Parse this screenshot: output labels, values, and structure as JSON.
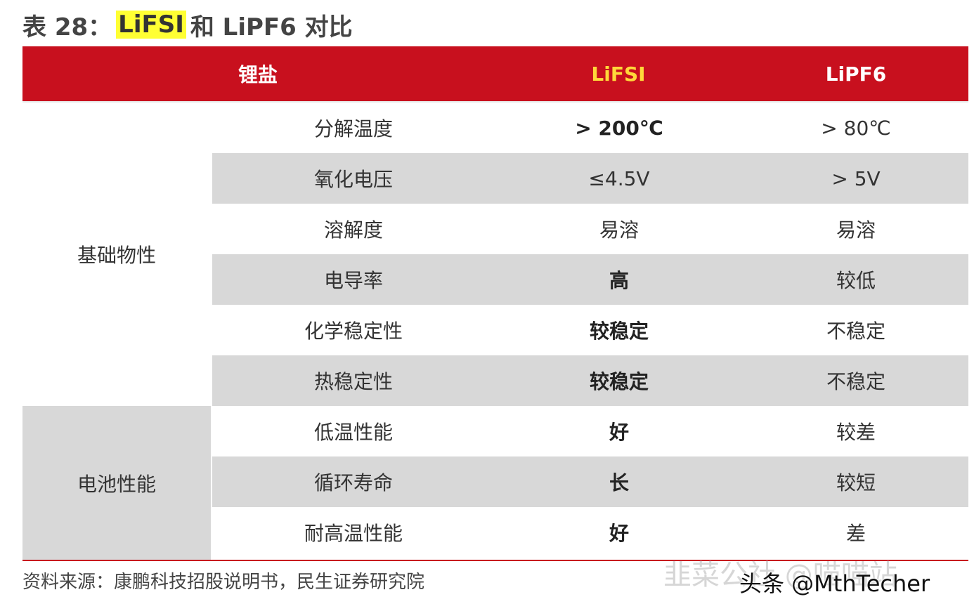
{
  "title": {
    "prefix": "表 28：",
    "highlight": "LiFSI",
    "suffix": "和 LiPF6 对比"
  },
  "header": {
    "col1": "锂盐",
    "col2": "LiFSI",
    "col3": "LiPF6"
  },
  "colors": {
    "header_bg": "#c8101e",
    "header_lifsi_text": "#ffd83a",
    "stripe": "#d8d8d8",
    "highlight": "#ffff33"
  },
  "groups": [
    {
      "label": "基础物性",
      "rows": [
        {
          "prop": "分解温度",
          "lifsi": "> 200℃",
          "lipf6": "> 80℃",
          "bold": true
        },
        {
          "prop": "氧化电压",
          "lifsi": "≤4.5V",
          "lipf6": "> 5V",
          "bold": false
        },
        {
          "prop": "溶解度",
          "lifsi": "易溶",
          "lipf6": "易溶",
          "bold": false
        },
        {
          "prop": "电导率",
          "lifsi": "高",
          "lipf6": "较低",
          "bold": true
        },
        {
          "prop": "化学稳定性",
          "lifsi": "较稳定",
          "lipf6": "不稳定",
          "bold": true
        },
        {
          "prop": "热稳定性",
          "lifsi": "较稳定",
          "lipf6": "不稳定",
          "bold": true
        }
      ]
    },
    {
      "label": "电池性能",
      "rows": [
        {
          "prop": "低温性能",
          "lifsi": "好",
          "lipf6": "较差",
          "bold": true
        },
        {
          "prop": "循环寿命",
          "lifsi": "长",
          "lipf6": "较短",
          "bold": true
        },
        {
          "prop": "耐高温性能",
          "lifsi": "好",
          "lipf6": "差",
          "bold": true
        }
      ]
    }
  ],
  "source": "资料来源：康鹏科技招股说明书，民生证券研究院",
  "watermarks": {
    "faded": "韭菜公社 @喵喵站",
    "primary": "头条 @MthTecher"
  }
}
